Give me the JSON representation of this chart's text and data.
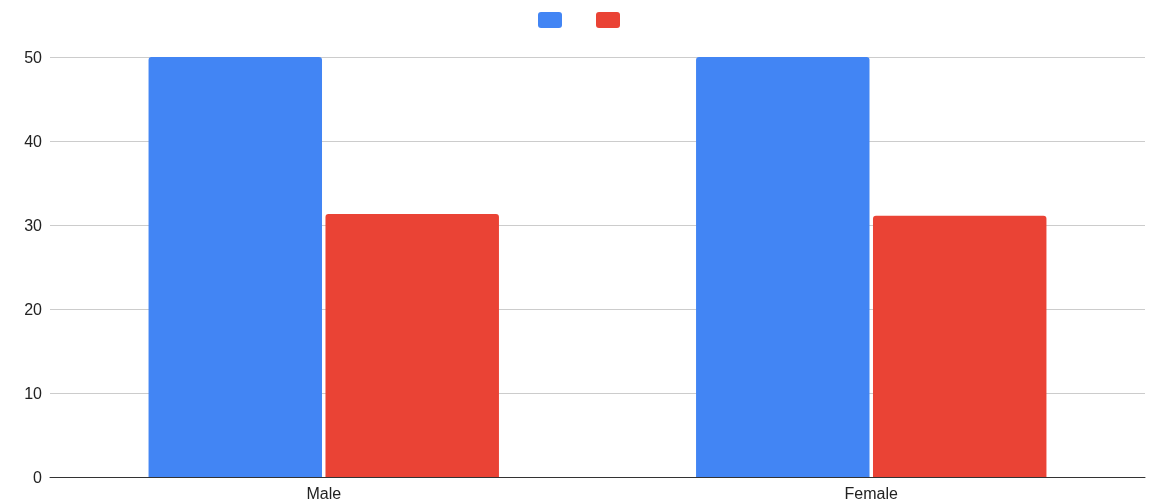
{
  "chart_data": {
    "type": "bar",
    "categories": [
      "Male",
      "Female"
    ],
    "series": [
      {
        "color": "#4285f4",
        "values": [
          50,
          50
        ]
      },
      {
        "color": "#ea4335",
        "values": [
          31.3,
          31.1
        ]
      }
    ],
    "ylim": [
      0,
      50
    ],
    "yticks": [
      0,
      10,
      20,
      30,
      40,
      50
    ],
    "grid": "y"
  }
}
